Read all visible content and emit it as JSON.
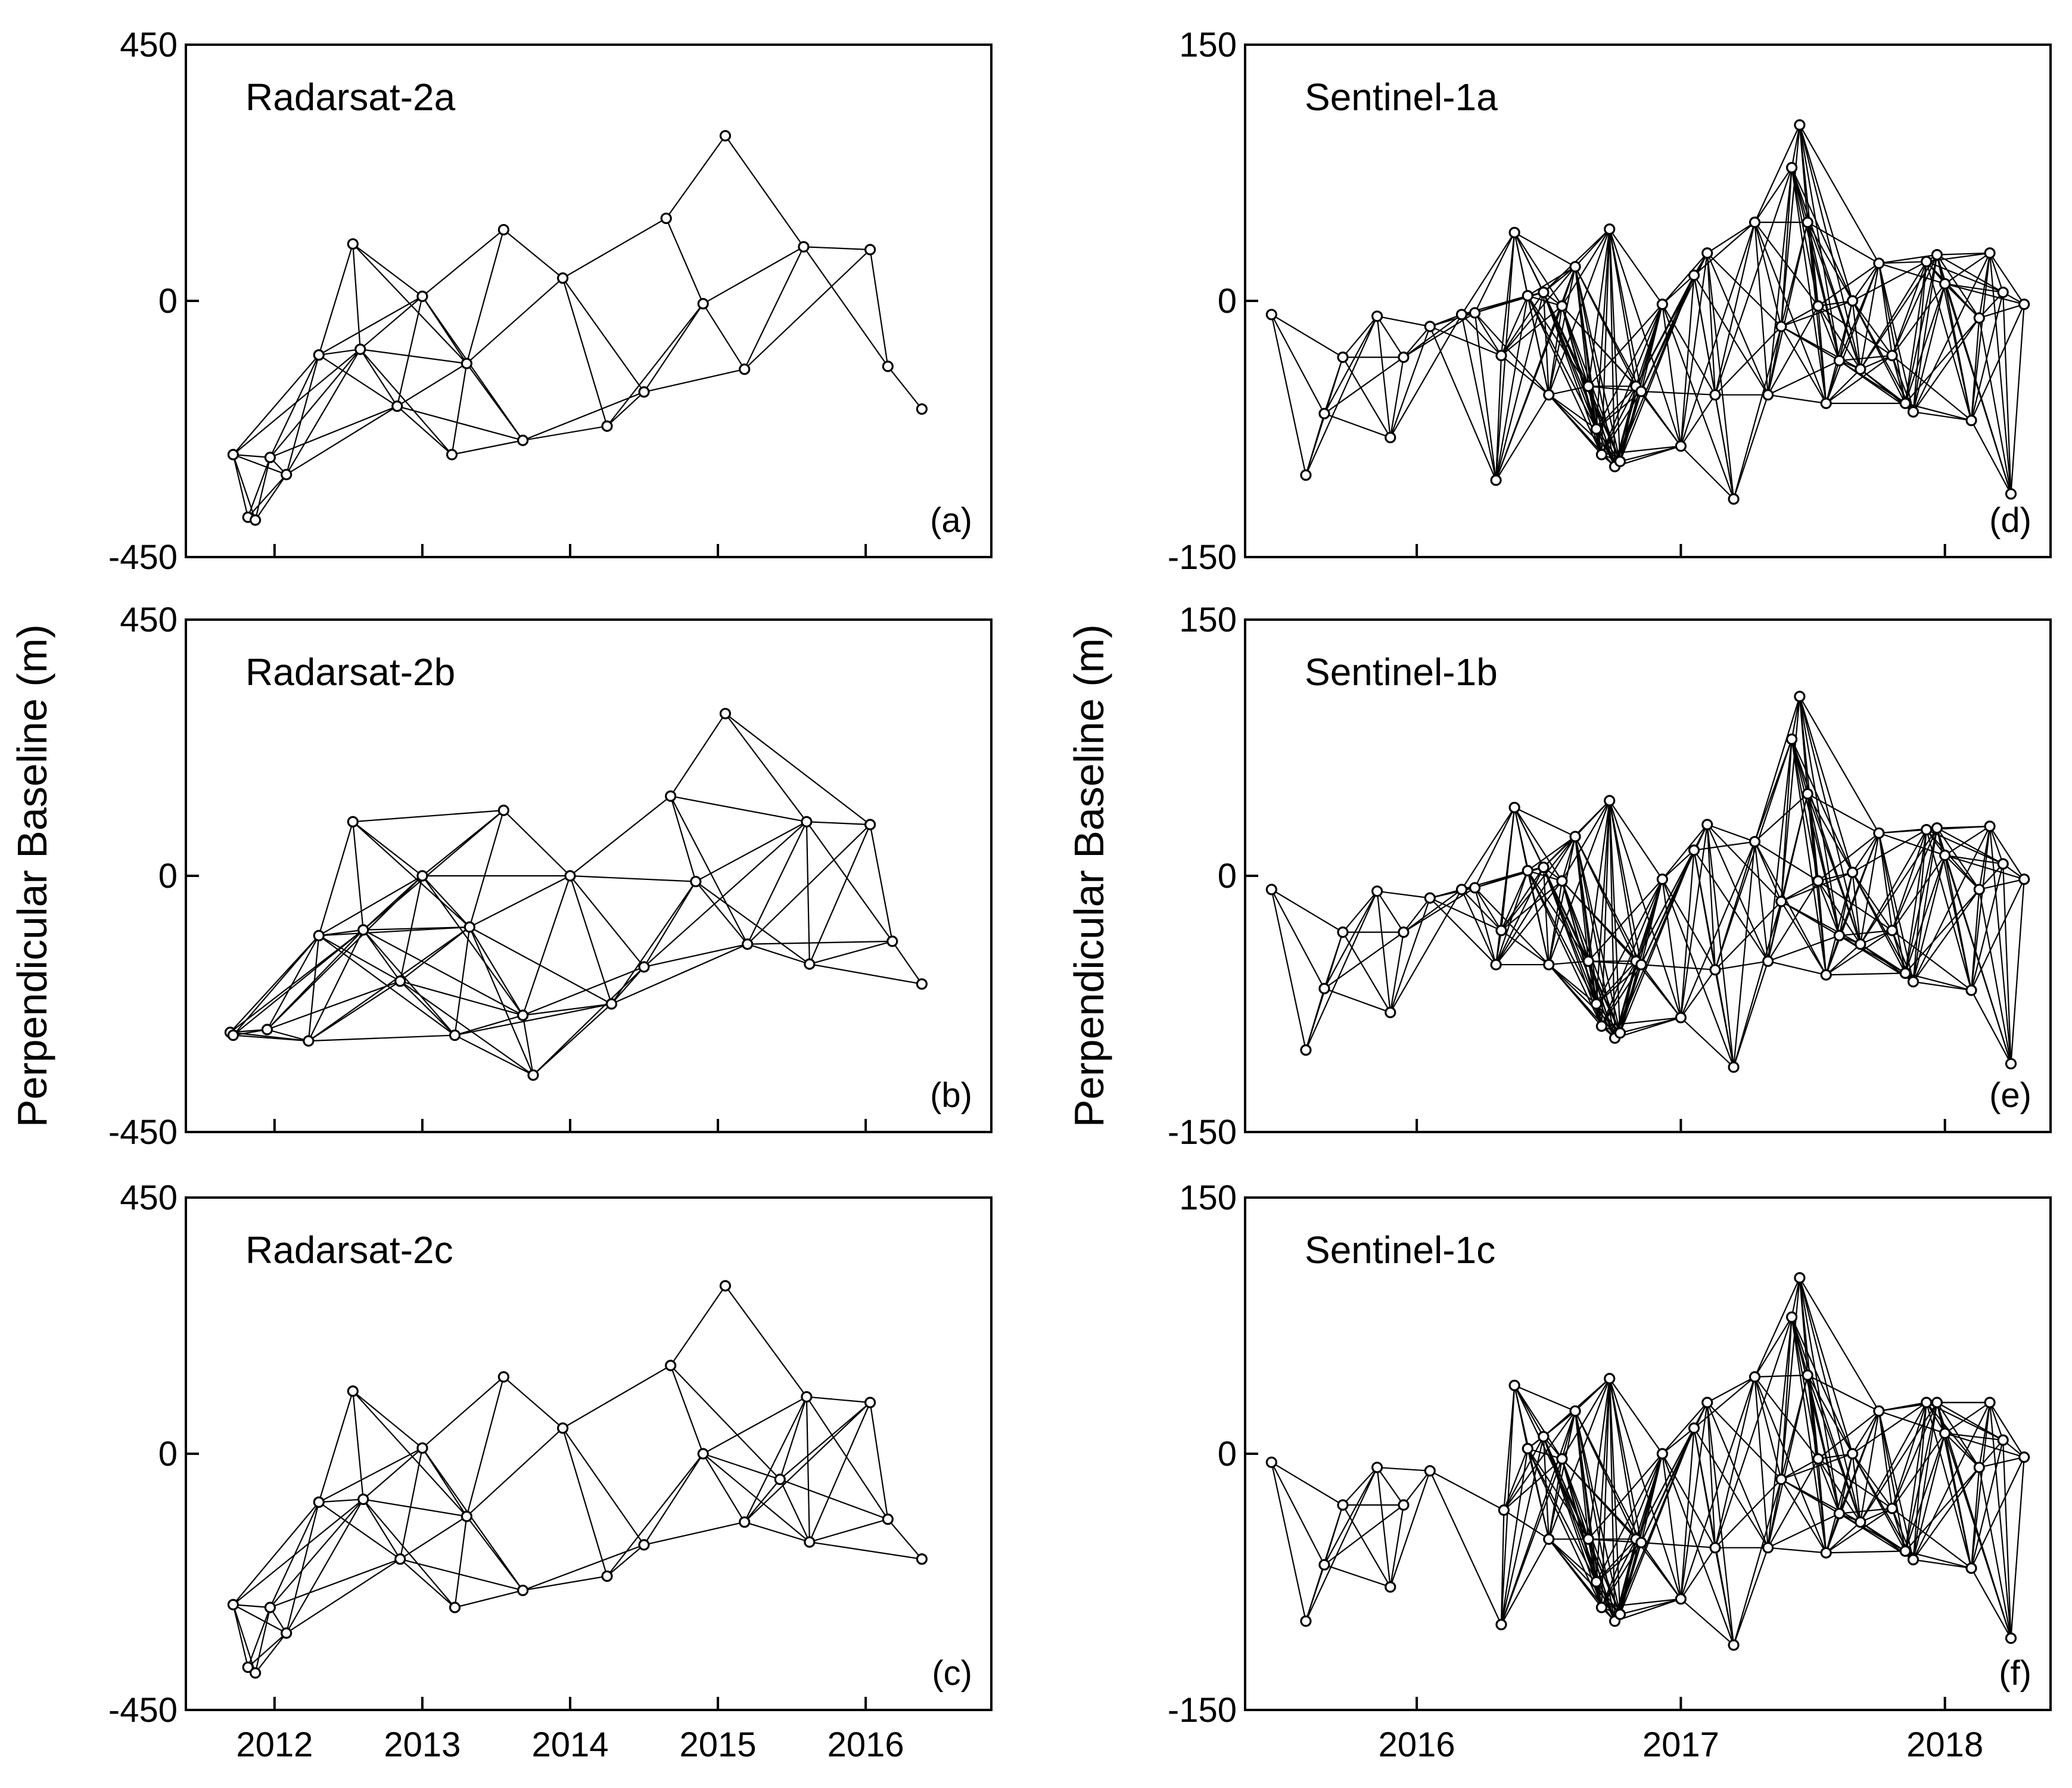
{
  "y_axis_label": "Perpendicular Baseline (m)",
  "chart_data": [
    {
      "type": "scatter",
      "panel": "(a)",
      "title": "Radarsat-2a",
      "ylim": [
        -450,
        450
      ],
      "xlim": [
        2011.4,
        2016.85
      ],
      "yticks": [
        "450",
        "0",
        "-450"
      ],
      "xticks": [],
      "connected_pairs": "all pairs within temporal 0.9 yr and baseline 260 m",
      "points": [
        {
          "x": 2011.72,
          "y": -270
        },
        {
          "x": 2011.82,
          "y": -380
        },
        {
          "x": 2011.87,
          "y": -385
        },
        {
          "x": 2011.97,
          "y": -275
        },
        {
          "x": 2012.08,
          "y": -305
        },
        {
          "x": 2012.3,
          "y": -95
        },
        {
          "x": 2012.53,
          "y": 100
        },
        {
          "x": 2012.58,
          "y": -85
        },
        {
          "x": 2012.83,
          "y": -185
        },
        {
          "x": 2013.0,
          "y": 8
        },
        {
          "x": 2013.2,
          "y": -270
        },
        {
          "x": 2013.3,
          "y": -110
        },
        {
          "x": 2013.55,
          "y": 125
        },
        {
          "x": 2013.68,
          "y": -245
        },
        {
          "x": 2013.95,
          "y": 40
        },
        {
          "x": 2014.25,
          "y": -220
        },
        {
          "x": 2014.5,
          "y": -160
        },
        {
          "x": 2014.65,
          "y": 145
        },
        {
          "x": 2014.9,
          "y": -5
        },
        {
          "x": 2015.05,
          "y": 290
        },
        {
          "x": 2015.18,
          "y": -120
        },
        {
          "x": 2015.58,
          "y": 95
        },
        {
          "x": 2016.03,
          "y": 90
        },
        {
          "x": 2016.15,
          "y": -115
        },
        {
          "x": 2016.38,
          "y": -190
        }
      ]
    },
    {
      "type": "scatter",
      "panel": "(b)",
      "title": "Radarsat-2b",
      "ylim": [
        -450,
        450
      ],
      "xlim": [
        2011.4,
        2016.85
      ],
      "yticks": [
        "450",
        "0",
        "-450"
      ],
      "xticks": [],
      "connected_pairs": "all pairs within temporal 1.1 yr and baseline 270 m",
      "points": [
        {
          "x": 2011.7,
          "y": -275
        },
        {
          "x": 2011.72,
          "y": -280
        },
        {
          "x": 2011.95,
          "y": -270
        },
        {
          "x": 2012.23,
          "y": -290
        },
        {
          "x": 2012.3,
          "y": -105
        },
        {
          "x": 2012.53,
          "y": 95
        },
        {
          "x": 2012.6,
          "y": -95
        },
        {
          "x": 2012.85,
          "y": -185
        },
        {
          "x": 2013.0,
          "y": 0
        },
        {
          "x": 2013.22,
          "y": -280
        },
        {
          "x": 2013.32,
          "y": -90
        },
        {
          "x": 2013.55,
          "y": 115
        },
        {
          "x": 2013.68,
          "y": -245
        },
        {
          "x": 2013.75,
          "y": -350
        },
        {
          "x": 2014.0,
          "y": 0
        },
        {
          "x": 2014.28,
          "y": -225
        },
        {
          "x": 2014.5,
          "y": -160
        },
        {
          "x": 2014.68,
          "y": 140
        },
        {
          "x": 2014.85,
          "y": -10
        },
        {
          "x": 2015.05,
          "y": 285
        },
        {
          "x": 2015.2,
          "y": -120
        },
        {
          "x": 2015.6,
          "y": 95
        },
        {
          "x": 2015.62,
          "y": -155
        },
        {
          "x": 2016.03,
          "y": 90
        },
        {
          "x": 2016.18,
          "y": -115
        },
        {
          "x": 2016.38,
          "y": -190
        }
      ]
    },
    {
      "type": "scatter",
      "panel": "(c)",
      "title": "Radarsat-2c",
      "ylim": [
        -450,
        450
      ],
      "xlim": [
        2011.4,
        2016.85
      ],
      "yticks": [
        "450",
        "0",
        "-450"
      ],
      "xticks": [
        "2012",
        "2013",
        "2014",
        "2015",
        "2016"
      ],
      "connected_pairs": "all pairs within temporal 0.9 yr and baseline 260 m",
      "points": [
        {
          "x": 2011.72,
          "y": -265
        },
        {
          "x": 2011.82,
          "y": -375
        },
        {
          "x": 2011.87,
          "y": -385
        },
        {
          "x": 2011.97,
          "y": -270
        },
        {
          "x": 2012.08,
          "y": -315
        },
        {
          "x": 2012.3,
          "y": -85
        },
        {
          "x": 2012.53,
          "y": 110
        },
        {
          "x": 2012.6,
          "y": -80
        },
        {
          "x": 2012.85,
          "y": -185
        },
        {
          "x": 2013.0,
          "y": 10
        },
        {
          "x": 2013.22,
          "y": -270
        },
        {
          "x": 2013.3,
          "y": -110
        },
        {
          "x": 2013.55,
          "y": 135
        },
        {
          "x": 2013.68,
          "y": -240
        },
        {
          "x": 2013.95,
          "y": 45
        },
        {
          "x": 2014.25,
          "y": -215
        },
        {
          "x": 2014.5,
          "y": -160
        },
        {
          "x": 2014.68,
          "y": 155
        },
        {
          "x": 2014.9,
          "y": 0
        },
        {
          "x": 2015.05,
          "y": 295
        },
        {
          "x": 2015.18,
          "y": -120
        },
        {
          "x": 2015.42,
          "y": -45
        },
        {
          "x": 2015.6,
          "y": 100
        },
        {
          "x": 2015.62,
          "y": -155
        },
        {
          "x": 2016.03,
          "y": 90
        },
        {
          "x": 2016.15,
          "y": -115
        },
        {
          "x": 2016.38,
          "y": -185
        }
      ]
    },
    {
      "type": "scatter",
      "panel": "(d)",
      "title": "Sentinel-1a",
      "ylim": [
        -150,
        150
      ],
      "xlim": [
        2015.35,
        2018.4
      ],
      "yticks": [
        "150",
        "0",
        "-150"
      ],
      "xticks": [],
      "connected_pairs": "all pairs within temporal 0.3 yr and baseline 150 m",
      "points": [
        {
          "x": 2015.45,
          "y": -8
        },
        {
          "x": 2015.58,
          "y": -102
        },
        {
          "x": 2015.65,
          "y": -66
        },
        {
          "x": 2015.72,
          "y": -33
        },
        {
          "x": 2015.85,
          "y": -9
        },
        {
          "x": 2015.9,
          "y": -80
        },
        {
          "x": 2015.95,
          "y": -33
        },
        {
          "x": 2016.05,
          "y": -15
        },
        {
          "x": 2016.17,
          "y": -8
        },
        {
          "x": 2016.22,
          "y": -7
        },
        {
          "x": 2016.3,
          "y": -105
        },
        {
          "x": 2016.32,
          "y": -32
        },
        {
          "x": 2016.37,
          "y": 40
        },
        {
          "x": 2016.42,
          "y": 3
        },
        {
          "x": 2016.48,
          "y": 5
        },
        {
          "x": 2016.5,
          "y": -55
        },
        {
          "x": 2016.55,
          "y": -3
        },
        {
          "x": 2016.6,
          "y": 20
        },
        {
          "x": 2016.65,
          "y": -50
        },
        {
          "x": 2016.68,
          "y": -75
        },
        {
          "x": 2016.7,
          "y": -90
        },
        {
          "x": 2016.73,
          "y": 42
        },
        {
          "x": 2016.75,
          "y": -97
        },
        {
          "x": 2016.77,
          "y": -94
        },
        {
          "x": 2016.83,
          "y": -50
        },
        {
          "x": 2016.85,
          "y": -53
        },
        {
          "x": 2016.93,
          "y": -2
        },
        {
          "x": 2017.0,
          "y": -85
        },
        {
          "x": 2017.05,
          "y": 15
        },
        {
          "x": 2017.1,
          "y": 28
        },
        {
          "x": 2017.13,
          "y": -55
        },
        {
          "x": 2017.2,
          "y": -116
        },
        {
          "x": 2017.28,
          "y": 46
        },
        {
          "x": 2017.33,
          "y": -55
        },
        {
          "x": 2017.38,
          "y": -15
        },
        {
          "x": 2017.42,
          "y": 78
        },
        {
          "x": 2017.45,
          "y": 103
        },
        {
          "x": 2017.48,
          "y": 46
        },
        {
          "x": 2017.52,
          "y": -3
        },
        {
          "x": 2017.55,
          "y": -60
        },
        {
          "x": 2017.6,
          "y": -35
        },
        {
          "x": 2017.65,
          "y": 0
        },
        {
          "x": 2017.68,
          "y": -40
        },
        {
          "x": 2017.75,
          "y": 22
        },
        {
          "x": 2017.8,
          "y": -32
        },
        {
          "x": 2017.85,
          "y": -60
        },
        {
          "x": 2017.88,
          "y": -65
        },
        {
          "x": 2017.93,
          "y": 23
        },
        {
          "x": 2017.97,
          "y": 27
        },
        {
          "x": 2018.0,
          "y": 10
        },
        {
          "x": 2018.1,
          "y": -70
        },
        {
          "x": 2018.13,
          "y": -10
        },
        {
          "x": 2018.17,
          "y": 28
        },
        {
          "x": 2018.22,
          "y": 5
        },
        {
          "x": 2018.25,
          "y": -113
        },
        {
          "x": 2018.3,
          "y": -2
        }
      ]
    },
    {
      "type": "scatter",
      "panel": "(e)",
      "title": "Sentinel-1b",
      "ylim": [
        -150,
        150
      ],
      "xlim": [
        2015.35,
        2018.4
      ],
      "yticks": [
        "150",
        "0",
        "-150"
      ],
      "xticks": [],
      "connected_pairs": "all pairs within temporal 0.3 yr and baseline 150 m",
      "points": [
        {
          "x": 2015.45,
          "y": -8
        },
        {
          "x": 2015.58,
          "y": -102
        },
        {
          "x": 2015.65,
          "y": -66
        },
        {
          "x": 2015.72,
          "y": -33
        },
        {
          "x": 2015.85,
          "y": -9
        },
        {
          "x": 2015.9,
          "y": -80
        },
        {
          "x": 2015.95,
          "y": -33
        },
        {
          "x": 2016.05,
          "y": -13
        },
        {
          "x": 2016.17,
          "y": -8
        },
        {
          "x": 2016.22,
          "y": -7
        },
        {
          "x": 2016.3,
          "y": -52
        },
        {
          "x": 2016.32,
          "y": -32
        },
        {
          "x": 2016.37,
          "y": 40
        },
        {
          "x": 2016.42,
          "y": 3
        },
        {
          "x": 2016.48,
          "y": 5
        },
        {
          "x": 2016.5,
          "y": -52
        },
        {
          "x": 2016.55,
          "y": -3
        },
        {
          "x": 2016.6,
          "y": 23
        },
        {
          "x": 2016.65,
          "y": -50
        },
        {
          "x": 2016.68,
          "y": -75
        },
        {
          "x": 2016.7,
          "y": -88
        },
        {
          "x": 2016.73,
          "y": 44
        },
        {
          "x": 2016.75,
          "y": -95
        },
        {
          "x": 2016.77,
          "y": -92
        },
        {
          "x": 2016.83,
          "y": -50
        },
        {
          "x": 2016.85,
          "y": -52
        },
        {
          "x": 2016.93,
          "y": -2
        },
        {
          "x": 2017.0,
          "y": -83
        },
        {
          "x": 2017.05,
          "y": 15
        },
        {
          "x": 2017.1,
          "y": 30
        },
        {
          "x": 2017.13,
          "y": -55
        },
        {
          "x": 2017.2,
          "y": -112
        },
        {
          "x": 2017.28,
          "y": 20
        },
        {
          "x": 2017.33,
          "y": -50
        },
        {
          "x": 2017.38,
          "y": -15
        },
        {
          "x": 2017.42,
          "y": 80
        },
        {
          "x": 2017.45,
          "y": 105
        },
        {
          "x": 2017.48,
          "y": 48
        },
        {
          "x": 2017.52,
          "y": -3
        },
        {
          "x": 2017.55,
          "y": -58
        },
        {
          "x": 2017.6,
          "y": -35
        },
        {
          "x": 2017.65,
          "y": 2
        },
        {
          "x": 2017.68,
          "y": -40
        },
        {
          "x": 2017.75,
          "y": 25
        },
        {
          "x": 2017.8,
          "y": -32
        },
        {
          "x": 2017.85,
          "y": -57
        },
        {
          "x": 2017.88,
          "y": -62
        },
        {
          "x": 2017.93,
          "y": 27
        },
        {
          "x": 2017.97,
          "y": 28
        },
        {
          "x": 2018.0,
          "y": 12
        },
        {
          "x": 2018.1,
          "y": -67
        },
        {
          "x": 2018.13,
          "y": -8
        },
        {
          "x": 2018.17,
          "y": 29
        },
        {
          "x": 2018.22,
          "y": 7
        },
        {
          "x": 2018.25,
          "y": -110
        },
        {
          "x": 2018.3,
          "y": -2
        }
      ]
    },
    {
      "type": "scatter",
      "panel": "(f)",
      "title": "Sentinel-1c",
      "ylim": [
        -150,
        150
      ],
      "xlim": [
        2015.35,
        2018.4
      ],
      "yticks": [
        "150",
        "0",
        "-150"
      ],
      "xticks": [
        "2016",
        "2017",
        "2018"
      ],
      "connected_pairs": "all pairs within temporal 0.3 yr and baseline 150 m",
      "points": [
        {
          "x": 2015.45,
          "y": -5
        },
        {
          "x": 2015.58,
          "y": -98
        },
        {
          "x": 2015.65,
          "y": -65
        },
        {
          "x": 2015.72,
          "y": -30
        },
        {
          "x": 2015.85,
          "y": -8
        },
        {
          "x": 2015.9,
          "y": -78
        },
        {
          "x": 2015.95,
          "y": -30
        },
        {
          "x": 2016.05,
          "y": -10
        },
        {
          "x": 2016.32,
          "y": -100
        },
        {
          "x": 2016.33,
          "y": -33
        },
        {
          "x": 2016.37,
          "y": 40
        },
        {
          "x": 2016.42,
          "y": 3
        },
        {
          "x": 2016.48,
          "y": 10
        },
        {
          "x": 2016.5,
          "y": -50
        },
        {
          "x": 2016.55,
          "y": -3
        },
        {
          "x": 2016.6,
          "y": 25
        },
        {
          "x": 2016.65,
          "y": -50
        },
        {
          "x": 2016.68,
          "y": -75
        },
        {
          "x": 2016.7,
          "y": -90
        },
        {
          "x": 2016.73,
          "y": 44
        },
        {
          "x": 2016.75,
          "y": -98
        },
        {
          "x": 2016.77,
          "y": -94
        },
        {
          "x": 2016.83,
          "y": -50
        },
        {
          "x": 2016.85,
          "y": -52
        },
        {
          "x": 2016.93,
          "y": 0
        },
        {
          "x": 2017.0,
          "y": -85
        },
        {
          "x": 2017.05,
          "y": 15
        },
        {
          "x": 2017.1,
          "y": 30
        },
        {
          "x": 2017.13,
          "y": -55
        },
        {
          "x": 2017.2,
          "y": -112
        },
        {
          "x": 2017.28,
          "y": 45
        },
        {
          "x": 2017.33,
          "y": -55
        },
        {
          "x": 2017.38,
          "y": -15
        },
        {
          "x": 2017.42,
          "y": 80
        },
        {
          "x": 2017.45,
          "y": 103
        },
        {
          "x": 2017.48,
          "y": 46
        },
        {
          "x": 2017.52,
          "y": -3
        },
        {
          "x": 2017.55,
          "y": -58
        },
        {
          "x": 2017.6,
          "y": -35
        },
        {
          "x": 2017.65,
          "y": 0
        },
        {
          "x": 2017.68,
          "y": -40
        },
        {
          "x": 2017.75,
          "y": 25
        },
        {
          "x": 2017.8,
          "y": -32
        },
        {
          "x": 2017.85,
          "y": -57
        },
        {
          "x": 2017.88,
          "y": -62
        },
        {
          "x": 2017.93,
          "y": 30
        },
        {
          "x": 2017.97,
          "y": 30
        },
        {
          "x": 2018.0,
          "y": 12
        },
        {
          "x": 2018.1,
          "y": -67
        },
        {
          "x": 2018.13,
          "y": -8
        },
        {
          "x": 2018.17,
          "y": 30
        },
        {
          "x": 2018.22,
          "y": 8
        },
        {
          "x": 2018.25,
          "y": -108
        },
        {
          "x": 2018.3,
          "y": -2
        }
      ]
    }
  ]
}
